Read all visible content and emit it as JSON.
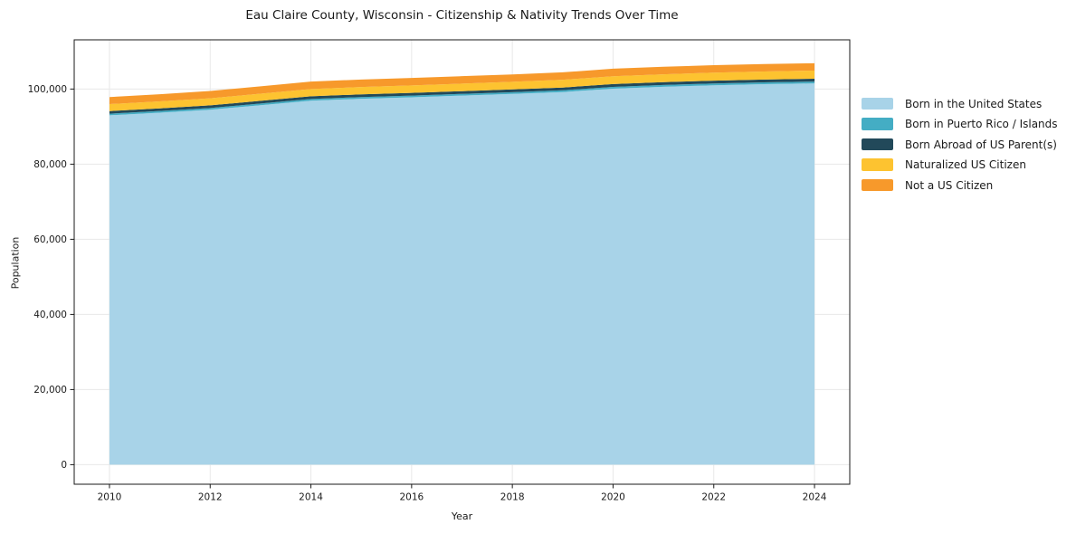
{
  "title": "Eau Claire County, Wisconsin - Citizenship & Nativity Trends Over Time",
  "chart_data": {
    "type": "area",
    "stacked": true,
    "title": "Eau Claire County, Wisconsin - Citizenship & Nativity Trends Over Time",
    "xlabel": "Year",
    "ylabel": "Population",
    "x": [
      2010,
      2011,
      2012,
      2013,
      2014,
      2015,
      2016,
      2017,
      2018,
      2019,
      2020,
      2021,
      2022,
      2023,
      2024
    ],
    "series": [
      {
        "name": "Born in the United States",
        "color": "#a8d3e8",
        "values": [
          93000,
          93700,
          94500,
          95700,
          96900,
          97400,
          97800,
          98250,
          98700,
          99200,
          100100,
          100600,
          101000,
          101300,
          101500
        ]
      },
      {
        "name": "Born in Puerto Rico / Islands",
        "color": "#44adc4",
        "values": [
          440,
          445,
          450,
          455,
          460,
          460,
          465,
          465,
          470,
          470,
          475,
          475,
          480,
          480,
          485
        ]
      },
      {
        "name": "Born Abroad of US Parent(s)",
        "color": "#22495a",
        "values": [
          690,
          695,
          700,
          705,
          710,
          715,
          720,
          725,
          730,
          735,
          745,
          750,
          755,
          760,
          765
        ]
      },
      {
        "name": "Naturalized US Citizen",
        "color": "#fdc330",
        "values": [
          1850,
          1870,
          1890,
          1910,
          1940,
          1960,
          1980,
          2000,
          2020,
          2050,
          2080,
          2100,
          2120,
          2140,
          2160
        ]
      },
      {
        "name": "Not a US Citizen",
        "color": "#f7992b",
        "values": [
          1890,
          1910,
          1940,
          1960,
          1990,
          2000,
          1990,
          1980,
          1970,
          1990,
          2010,
          2000,
          1990,
          1980,
          1970
        ]
      }
    ],
    "xticks": [
      2010,
      2012,
      2014,
      2016,
      2018,
      2020,
      2022,
      2024
    ],
    "xtick_labels": [
      "2010",
      "2012",
      "2014",
      "2016",
      "2018",
      "2020",
      "2022",
      "2024"
    ],
    "yticks": [
      0,
      20000,
      40000,
      60000,
      80000,
      100000
    ],
    "ytick_labels": [
      "0",
      "20,000",
      "40,000",
      "60,000",
      "80,000",
      "100,000"
    ],
    "xlim": [
      2009.3,
      2024.7
    ],
    "ylim": [
      -5200,
      113100
    ],
    "grid": true,
    "legend_position": "right"
  },
  "colors": {
    "grid": "#e8e8e8",
    "spine": "#1a1a1a",
    "tick": "#1a1a1a",
    "text": "#1a1a1a",
    "background": "#ffffff"
  }
}
